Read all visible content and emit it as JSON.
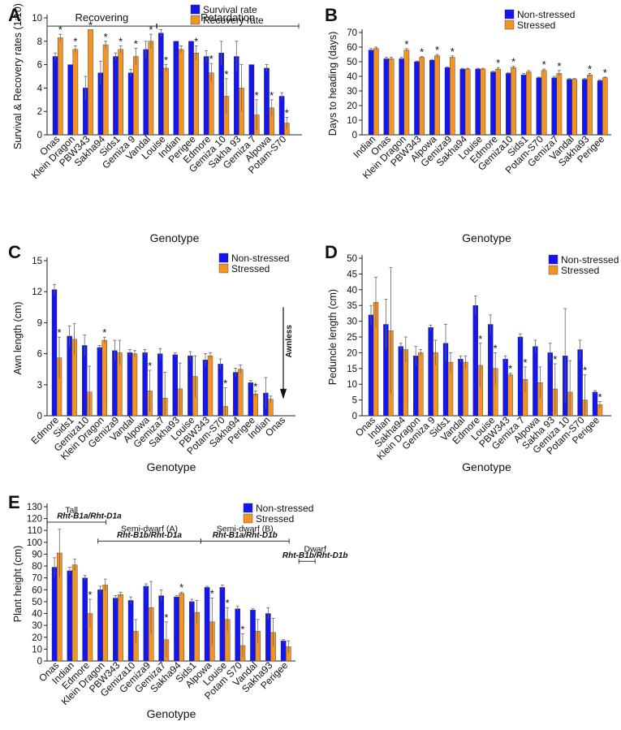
{
  "colors": {
    "blue": "#1515f0",
    "orange": "#f29425",
    "green": "#2a9a2a",
    "red": "#9a1a1a",
    "star_green": "#2a9a2a",
    "star_red": "#b01a1a"
  },
  "chart_data": [
    {
      "panel": "A",
      "type": "bar",
      "ylabel": "Survival & Recovery rates (1:10)",
      "xlabel": "Genotype",
      "ylim": [
        0,
        10
      ],
      "yticks": [
        0,
        2,
        4,
        6,
        8,
        10
      ],
      "legend": [
        "Survival rate",
        "Recovery rate"
      ],
      "categories": [
        "Onas",
        "Klein Dragon",
        "PBW343",
        "Sakha94",
        "Sids1",
        "Gemiza 9",
        "Vandal",
        "Louise",
        "Indian",
        "Perigee",
        "Edmore",
        "Gemiza 10",
        "Sakha 93",
        "Gemiza 7",
        "Alpowa",
        "Potam-S70"
      ],
      "series": [
        {
          "name": "Survival rate",
          "values": [
            6.7,
            6.0,
            4.0,
            5.3,
            6.7,
            5.3,
            7.3,
            8.7,
            8.0,
            8.0,
            6.7,
            7.0,
            6.7,
            6.0,
            5.7,
            3.3
          ],
          "errors": [
            0.3,
            0,
            1,
            1,
            0.3,
            0.3,
            0.7,
            0.3,
            0,
            0,
            0.5,
            1.0,
            1.3,
            0,
            0.3,
            0.3
          ]
        },
        {
          "name": "Recovery rate",
          "values": [
            8.3,
            7.3,
            9.0,
            7.7,
            7.3,
            6.7,
            8.0,
            5.7,
            7.3,
            7.0,
            5.3,
            3.3,
            4.0,
            1.7,
            2.3,
            1.0
          ],
          "errors": [
            0.3,
            0.3,
            0,
            0.3,
            0.3,
            0.7,
            0.6,
            0.3,
            0.3,
            0.6,
            0.8,
            1.5,
            2.0,
            1.3,
            0.7,
            0.5
          ]
        }
      ],
      "stars": [
        {
          "index": 0,
          "color": "green"
        },
        {
          "index": 1,
          "color": "green"
        },
        {
          "index": 2,
          "color": "green"
        },
        {
          "index": 3,
          "color": "green"
        },
        {
          "index": 4,
          "color": "green"
        },
        {
          "index": 5,
          "color": "green"
        },
        {
          "index": 6,
          "color": "green"
        },
        {
          "index": 7,
          "color": "black"
        },
        {
          "index": 9,
          "color": "red"
        },
        {
          "index": 10,
          "color": "black"
        },
        {
          "index": 11,
          "color": "black"
        },
        {
          "index": 13,
          "color": "red"
        },
        {
          "index": 14,
          "color": "black"
        },
        {
          "index": 15,
          "color": "black"
        }
      ],
      "groups": [
        {
          "label": "Recovering",
          "from": 0,
          "to": 6,
          "color": "green"
        },
        {
          "label": "Retardation",
          "from": 7,
          "to": 15,
          "color": "red"
        }
      ]
    },
    {
      "panel": "B",
      "type": "bar",
      "ylabel": "Days to heading (days)",
      "xlabel": "Genotype",
      "ylim": [
        0,
        70
      ],
      "yticks": [
        0,
        10,
        20,
        30,
        40,
        50,
        60,
        70
      ],
      "legend": [
        "Non-stressed",
        "Stressed"
      ],
      "categories": [
        "Indian",
        "Onas",
        "Klein Dragon",
        "PBW343",
        "Alpowa",
        "Gemiza9",
        "Sakha94",
        "Louise",
        "Edmore",
        "Gemiza10",
        "Sids1",
        "Potam-S70",
        "Gemiza7",
        "Vandal",
        "Sakha93",
        "Perigee"
      ],
      "series": [
        {
          "name": "Non-stressed",
          "values": [
            58,
            52,
            52,
            50,
            51,
            46,
            45,
            45,
            43,
            42,
            41,
            39,
            39,
            38,
            38,
            37
          ],
          "errors": [
            1,
            1,
            1,
            0.5,
            0.5,
            0.5,
            0.5,
            0.5,
            0.5,
            0.5,
            1,
            0.5,
            1,
            0.5,
            0.5,
            0.5
          ]
        },
        {
          "name": "Stressed",
          "values": [
            59,
            52,
            58,
            53,
            54,
            53,
            45,
            45,
            45,
            46,
            43,
            44,
            42,
            38,
            41,
            39
          ],
          "errors": [
            1,
            1,
            1,
            0.5,
            1,
            1,
            0.5,
            0.5,
            1,
            1,
            1,
            1,
            2,
            0.5,
            1,
            0.5
          ]
        }
      ],
      "stars": [
        2,
        3,
        4,
        5,
        8,
        9,
        11,
        12,
        14,
        15
      ]
    },
    {
      "panel": "C",
      "type": "bar",
      "ylabel": "Awn length (cm)",
      "xlabel": "Genotype",
      "ylim": [
        0,
        15
      ],
      "yticks": [
        0,
        3,
        6,
        9,
        12,
        15
      ],
      "legend": [
        "Non-stressed",
        "Stressed"
      ],
      "categories": [
        "Edmore",
        "Sids1",
        "Gemiza10",
        "Klein Dragon",
        "Gemiza9",
        "Vandal",
        "Alpowa",
        "Gemiza7",
        "Sakha93",
        "Louise",
        "PBW343",
        "Potam-S70",
        "Sakha94",
        "Perigee",
        "Indian",
        "Onas"
      ],
      "series": [
        {
          "name": "Non-stressed",
          "values": [
            12.2,
            7.7,
            6.8,
            6.6,
            6.3,
            6.1,
            6.1,
            6.0,
            5.9,
            5.8,
            5.4,
            5.0,
            4.2,
            3.2,
            2.2,
            0
          ],
          "errors": [
            0.5,
            1.0,
            1.0,
            0.2,
            1.0,
            0.3,
            0.3,
            0.5,
            0.2,
            0.4,
            0.6,
            0.5,
            0.4,
            0.2,
            1.5,
            0
          ]
        },
        {
          "name": "Stressed",
          "values": [
            5.6,
            7.4,
            2.3,
            7.3,
            6.1,
            6.0,
            2.4,
            1.7,
            2.6,
            3.8,
            5.8,
            0.9,
            4.5,
            2.1,
            1.6,
            0
          ],
          "errors": [
            2.0,
            1.5,
            2.5,
            0.3,
            1.2,
            0.3,
            2.0,
            2.5,
            2.5,
            2.0,
            0.3,
            1.8,
            0.4,
            0.3,
            0.3,
            0
          ]
        }
      ],
      "stars": [
        0,
        3,
        6,
        11,
        13
      ],
      "annotation": "Awnless"
    },
    {
      "panel": "D",
      "type": "bar",
      "ylabel": "Peduncle length (cm)",
      "xlabel": "Genotype",
      "ylim": [
        0,
        50
      ],
      "yticks": [
        0,
        5,
        10,
        15,
        20,
        25,
        30,
        35,
        40,
        45,
        50
      ],
      "legend": [
        "Non-stressed",
        "Stressed"
      ],
      "categories": [
        "Onas",
        "Indian",
        "Sakha94",
        "Klein Dragon",
        "Gemiza 9",
        "Sids1",
        "Vandal",
        "Edmore",
        "Louise",
        "PBW343",
        "Gemiza 7",
        "Alpowa",
        "Sakha 93",
        "Gemiza 10",
        "Potam-S70",
        "Perigee"
      ],
      "series": [
        {
          "name": "Non-stressed",
          "values": [
            32,
            29,
            22,
            19,
            28,
            23,
            18,
            35,
            29,
            18,
            25,
            22,
            20,
            19,
            21,
            7.5
          ],
          "errors": [
            3,
            8,
            1,
            3,
            0.8,
            6,
            1,
            3,
            3,
            1,
            1,
            2,
            3,
            15,
            3,
            0.5
          ]
        },
        {
          "name": "Stressed",
          "values": [
            36,
            27,
            21,
            20,
            20,
            17,
            17,
            16,
            15,
            13,
            11.5,
            10.5,
            8.5,
            7.5,
            5,
            3.5
          ],
          "errors": [
            8,
            20,
            4,
            1,
            4,
            3,
            2,
            7,
            5,
            0.5,
            4,
            5,
            8,
            10,
            8,
            1
          ]
        }
      ],
      "stars": [
        7,
        8,
        9,
        10,
        12,
        14,
        15
      ]
    },
    {
      "panel": "E",
      "type": "bar",
      "ylabel": "Plant height (cm)",
      "xlabel": "Genotype",
      "ylim": [
        0,
        130
      ],
      "yticks": [
        0,
        10,
        20,
        30,
        40,
        50,
        60,
        70,
        80,
        90,
        100,
        110,
        120,
        130
      ],
      "legend": [
        "Non-stressed",
        "Stressed"
      ],
      "categories": [
        "Onas",
        "Indian",
        "Edmore",
        "Klein Dragon",
        "PBW343",
        "Gemiza10",
        "Gemiza9",
        "Gemiza7",
        "Sakha94",
        "Sids1",
        "Alpowa",
        "Louise",
        "Potam S70",
        "Vandal",
        "Sakha93",
        "Perigee"
      ],
      "series": [
        {
          "name": "Non-stressed",
          "values": [
            79,
            76,
            70,
            60,
            53,
            51,
            63,
            55,
            54,
            50,
            62,
            62,
            44,
            43,
            40,
            17
          ],
          "errors": [
            8,
            3,
            2,
            3,
            2,
            3,
            2,
            5,
            1,
            2,
            1,
            2,
            2,
            1,
            5,
            1
          ]
        },
        {
          "name": "Stressed",
          "values": [
            91,
            81,
            40,
            64,
            56,
            25,
            45,
            18,
            57,
            41,
            33,
            35,
            13,
            25,
            24,
            12
          ],
          "errors": [
            20,
            5,
            12,
            5,
            2,
            10,
            22,
            15,
            1,
            10,
            20,
            10,
            10,
            10,
            12,
            5
          ]
        }
      ],
      "stars": [
        2,
        7,
        8,
        10,
        11,
        12
      ],
      "groups": [
        {
          "label": "Tall",
          "allele": "Rht-B1a/Rht-D1a"
        },
        {
          "label": "Semi-dwarf (A)",
          "allele": "Rht-B1b/Rht-D1a"
        },
        {
          "label": "Semi-dwarf (B)",
          "allele": "Rht-B1a/Rht-D1b"
        },
        {
          "label": "Dwarf",
          "allele": "Rht-B1b/Rht-D1b"
        }
      ]
    }
  ]
}
